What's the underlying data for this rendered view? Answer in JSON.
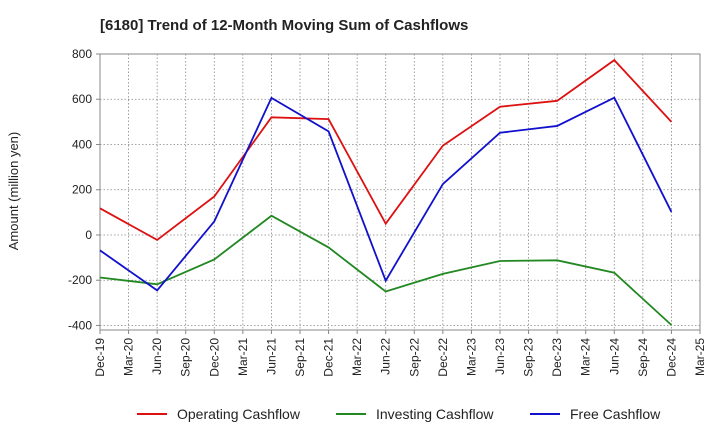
{
  "chart_data": {
    "type": "line",
    "title": "[6180]  Trend of 12-Month Moving Sum of Cashflows",
    "xlabel": "",
    "ylabel": "Amount (million yen)",
    "ylim": [
      -420,
      800
    ],
    "yticks": [
      -400,
      -200,
      0,
      200,
      400,
      600,
      800
    ],
    "categories": [
      "Dec-19",
      "Mar-20",
      "Jun-20",
      "Sep-20",
      "Dec-20",
      "Mar-21",
      "Jun-21",
      "Sep-21",
      "Dec-21",
      "Mar-22",
      "Jun-22",
      "Sep-22",
      "Dec-22",
      "Mar-23",
      "Jun-23",
      "Sep-23",
      "Dec-23",
      "Mar-24",
      "Jun-24",
      "Sep-24",
      "Dec-24",
      "Mar-25"
    ],
    "grid": true,
    "legend_position": "bottom",
    "series": [
      {
        "name": "Operating Cashflow",
        "color": "#dd1111",
        "values": [
          118,
          null,
          -22,
          null,
          170,
          null,
          520,
          null,
          512,
          null,
          50,
          null,
          395,
          null,
          567,
          null,
          593,
          null,
          773,
          null,
          500,
          null
        ]
      },
      {
        "name": "Investing Cashflow",
        "color": "#228822",
        "values": [
          -188,
          null,
          -218,
          null,
          -108,
          null,
          85,
          null,
          -55,
          null,
          -250,
          null,
          -172,
          null,
          -115,
          null,
          -112,
          null,
          -167,
          null,
          -398,
          null
        ]
      },
      {
        "name": "Free Cashflow",
        "color": "#1111cc",
        "values": [
          -68,
          null,
          -245,
          null,
          60,
          null,
          606,
          null,
          458,
          null,
          -202,
          null,
          225,
          null,
          452,
          null,
          482,
          null,
          607,
          null,
          102,
          null
        ]
      }
    ]
  }
}
